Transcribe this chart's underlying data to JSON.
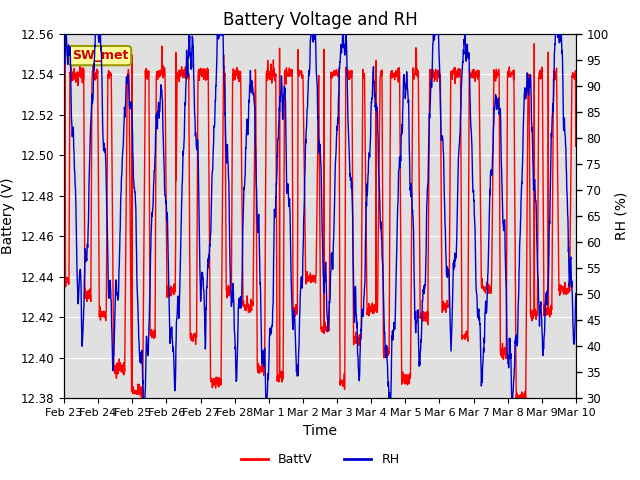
{
  "title": "Battery Voltage and RH",
  "xlabel": "Time",
  "ylabel_left": "Battery (V)",
  "ylabel_right": "RH (%)",
  "annotation": "SW_met",
  "ylim_left": [
    12.38,
    12.56
  ],
  "ylim_right": [
    30,
    100
  ],
  "yticks_left": [
    12.38,
    12.4,
    12.42,
    12.44,
    12.46,
    12.48,
    12.5,
    12.52,
    12.54,
    12.56
  ],
  "yticks_right": [
    30,
    35,
    40,
    45,
    50,
    55,
    60,
    65,
    70,
    75,
    80,
    85,
    90,
    95,
    100
  ],
  "x_tick_labels": [
    "Feb 23",
    "Feb 24",
    "Feb 25",
    "Feb 26",
    "Feb 27",
    "Feb 28",
    "Mar 1",
    "Mar 2",
    "Mar 3",
    "Mar 4",
    "Mar 5",
    "Mar 6",
    "Mar 7",
    "Mar 8",
    "Mar 9",
    "Mar 10"
  ],
  "n_days": 15,
  "batt_base": 12.54,
  "batt_min": 12.38,
  "batt_max": 12.56,
  "rh_min": 30,
  "rh_max": 100,
  "batt_color": "#ff0000",
  "rh_color": "#0000cc",
  "legend_batt": "BattV",
  "legend_rh": "RH",
  "bg_color": "#ffffff",
  "plot_bg_color": "#e0e0e0",
  "annotation_bg": "#ffff99",
  "annotation_border": "#999900",
  "annotation_text_color": "#cc0000",
  "grid_color": "#ffffff",
  "title_fontsize": 12,
  "label_fontsize": 10,
  "tick_fontsize": 8.5
}
